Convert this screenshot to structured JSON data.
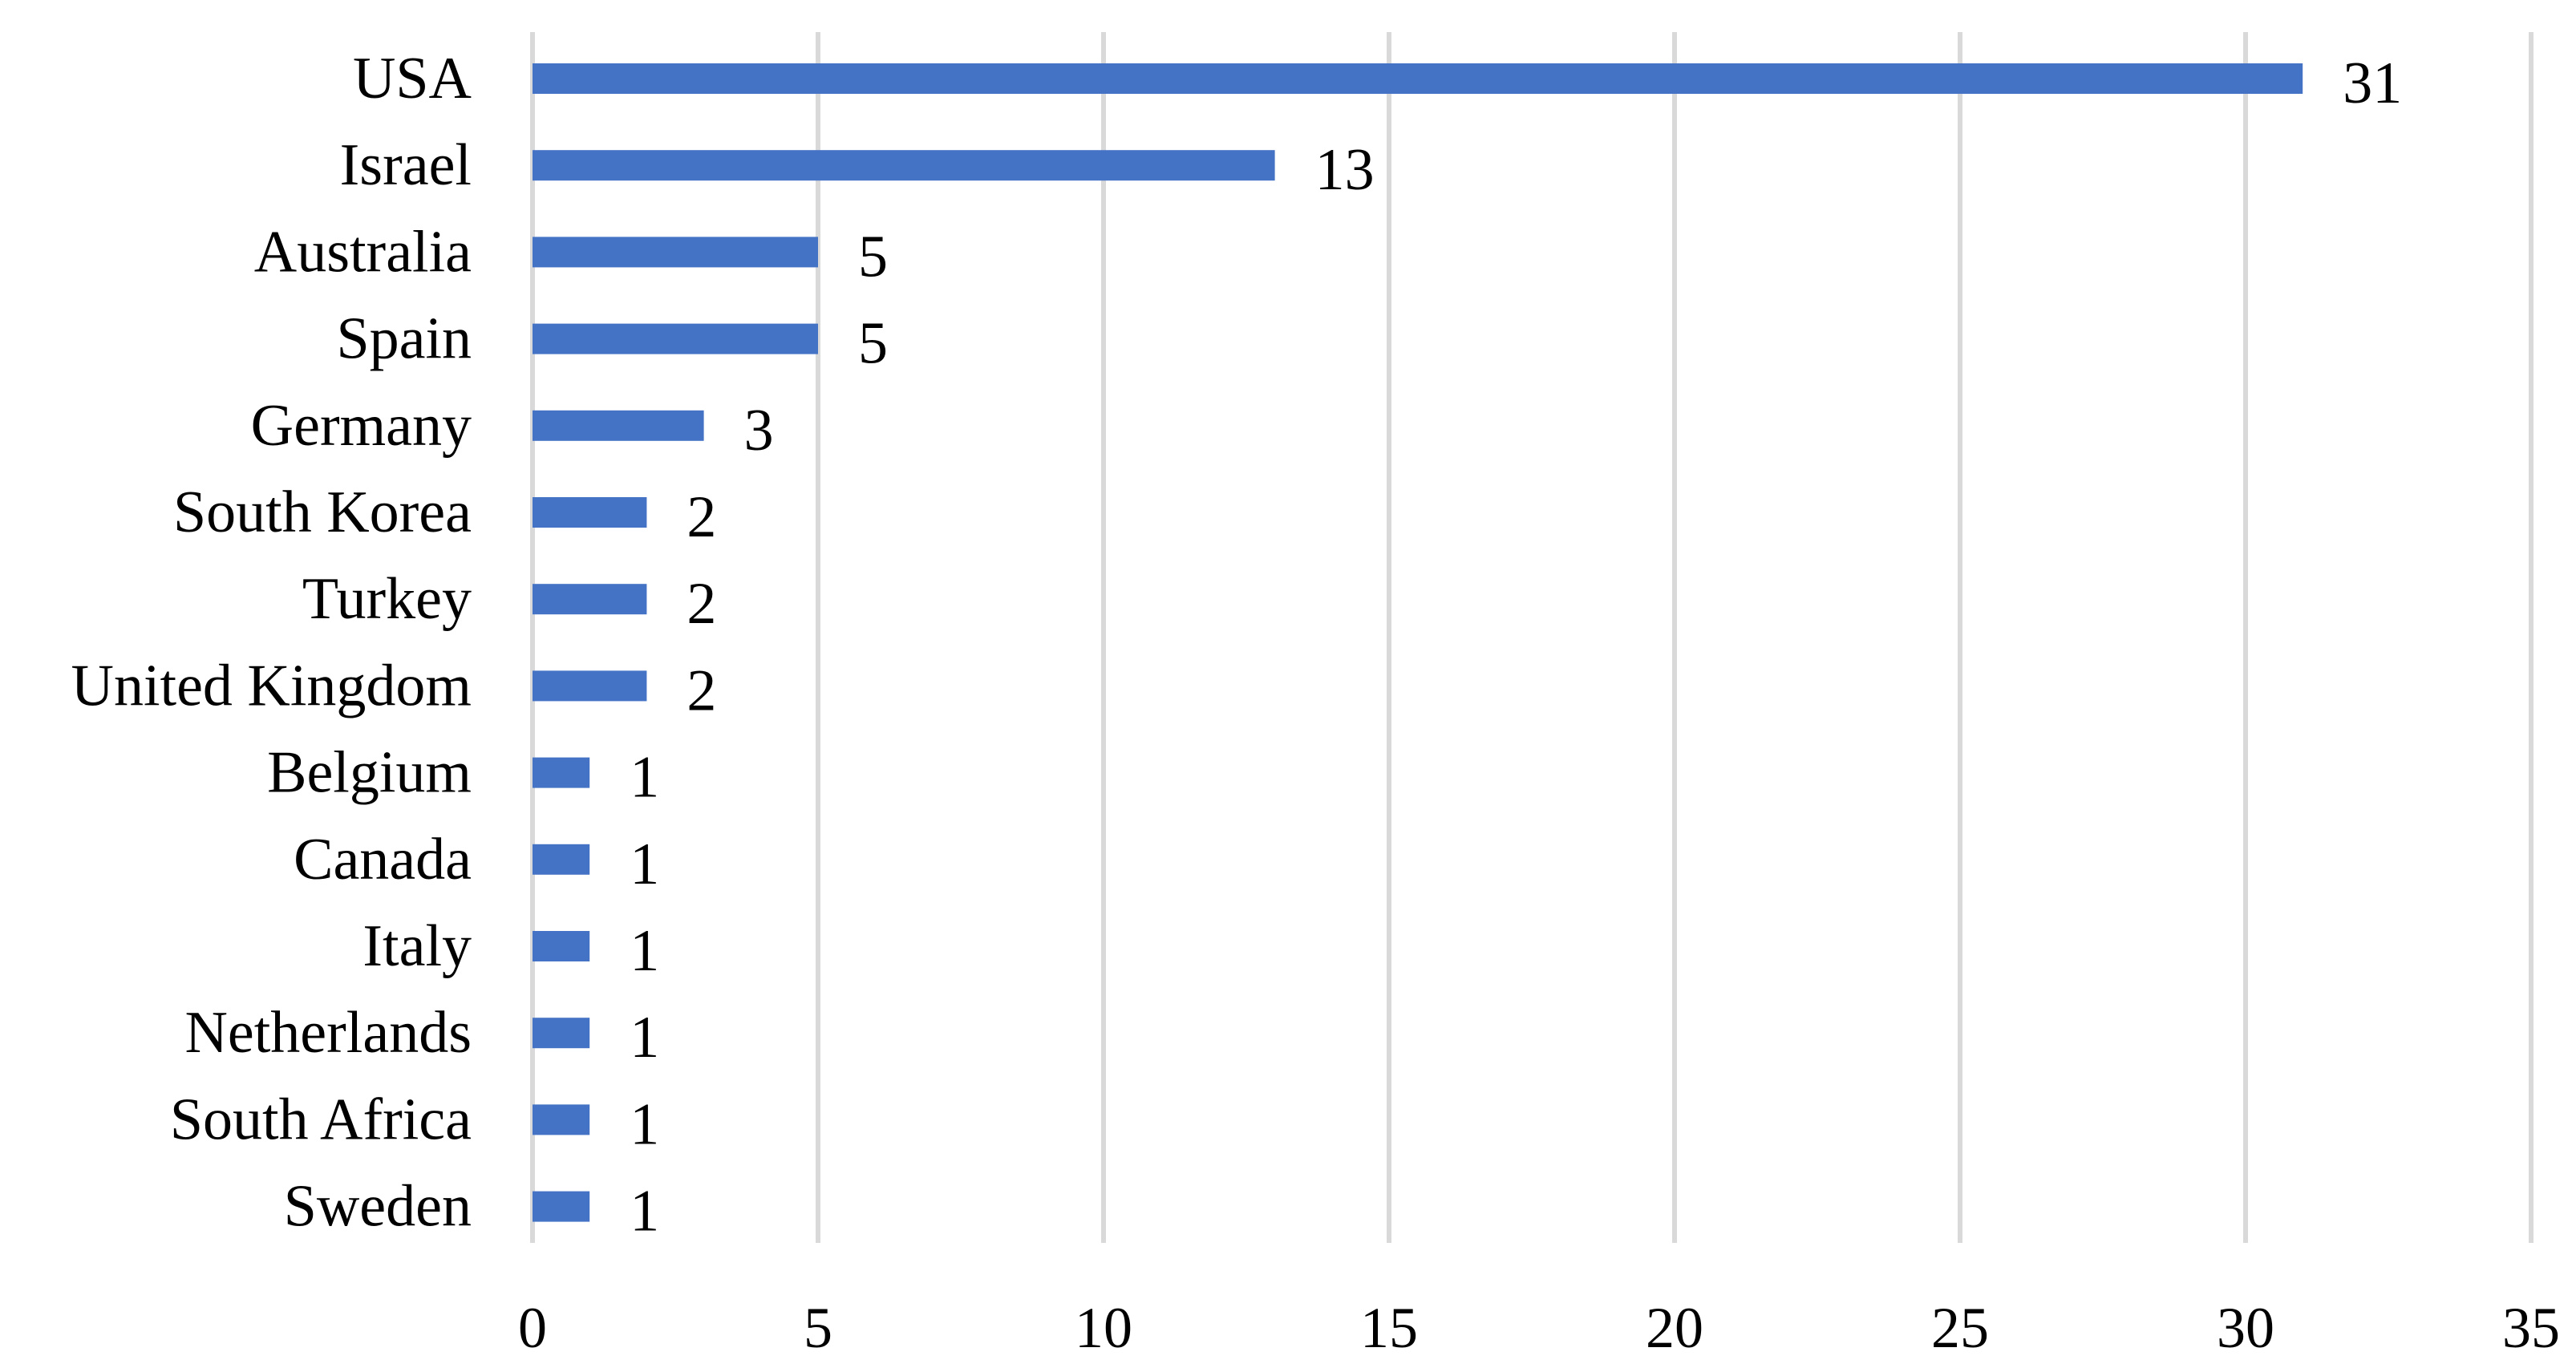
{
  "chart_data": {
    "type": "bar",
    "orientation": "horizontal",
    "categories": [
      "USA",
      "Israel",
      "Australia",
      "Spain",
      "Germany",
      "South Korea",
      "Turkey",
      "United Kingdom",
      "Belgium",
      "Canada",
      "Italy",
      "Netherlands",
      "South Africa",
      "Sweden"
    ],
    "values": [
      31,
      13,
      5,
      5,
      3,
      2,
      2,
      2,
      1,
      1,
      1,
      1,
      1,
      1
    ],
    "data_labels": [
      "31",
      "13",
      "5",
      "5",
      "3",
      "2",
      "2",
      "2",
      "1",
      "1",
      "1",
      "1",
      "1",
      "1"
    ],
    "xlim": [
      0,
      35
    ],
    "xticks": [
      0,
      5,
      10,
      15,
      20,
      25,
      30,
      35
    ],
    "xtick_labels": [
      "0",
      "5",
      "10",
      "15",
      "20",
      "25",
      "30",
      "35"
    ],
    "title": "",
    "xlabel": "",
    "ylabel": "",
    "grid": "vertical",
    "legend": "none",
    "colors": {
      "bar": "#4472C4",
      "grid": "#D9D9D9",
      "text": "#000000"
    }
  }
}
